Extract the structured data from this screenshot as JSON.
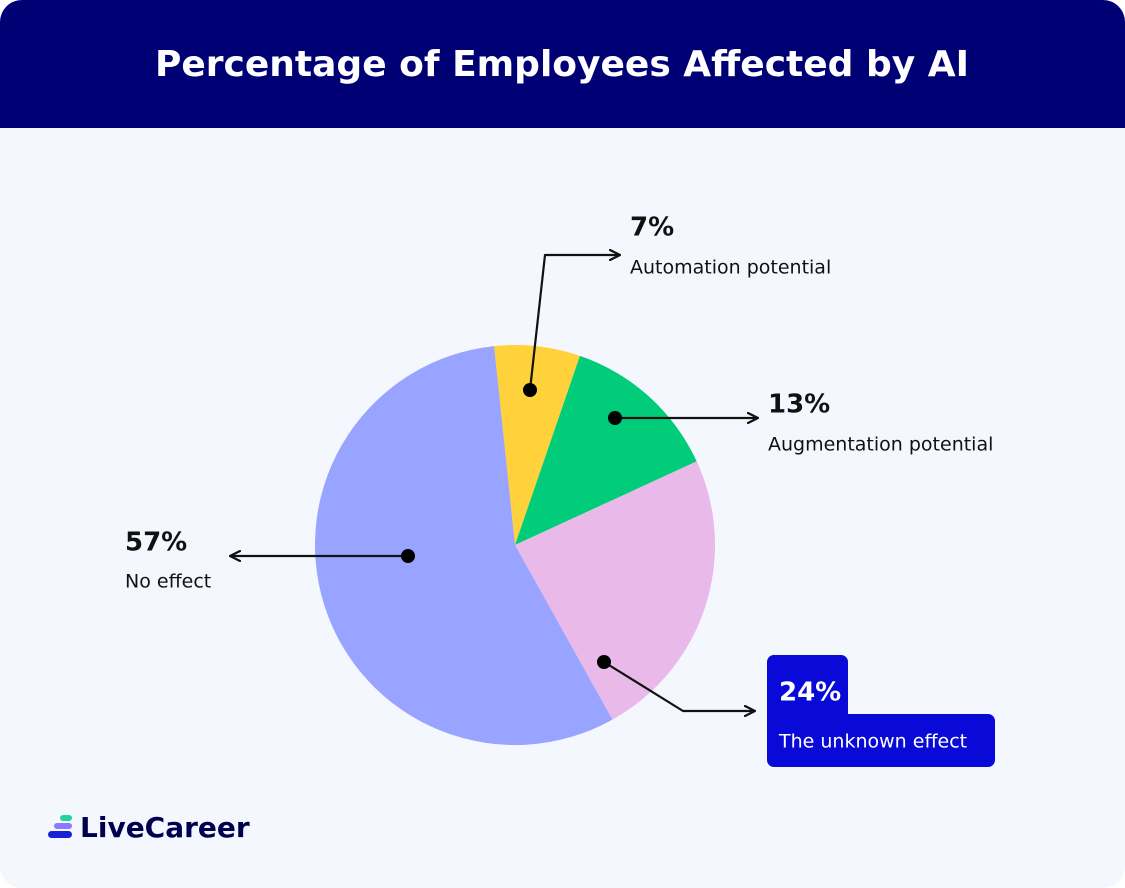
{
  "chart_data": {
    "type": "pie",
    "title": "Percentage of Employees Affected by AI",
    "categories": [
      "Automation potential",
      "Augmentation potential",
      "The unknown effect",
      "No effect"
    ],
    "values": [
      7,
      13,
      24,
      57
    ],
    "value_labels": [
      "7%",
      "13%",
      "24%",
      "57%"
    ],
    "colors": [
      "#ffd23c",
      "#00cc7a",
      "#e9b9ea",
      "#98a4ff"
    ]
  },
  "brand": "LiveCareer"
}
